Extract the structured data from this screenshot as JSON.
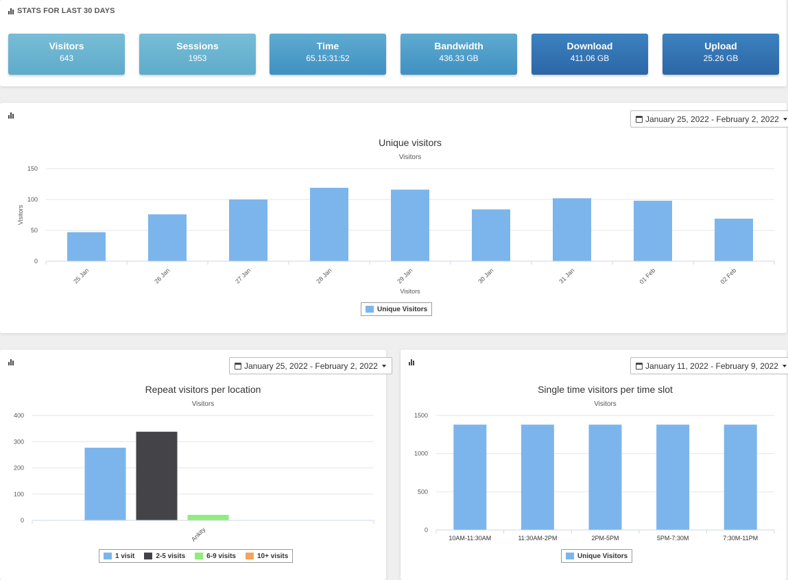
{
  "stats": {
    "title": "STATS FOR LAST 30 DAYS",
    "cards": [
      {
        "label": "Visitors",
        "value": "643"
      },
      {
        "label": "Sessions",
        "value": "1953"
      },
      {
        "label": "Time",
        "value": "65.15:31:52"
      },
      {
        "label": "Bandwidth",
        "value": "436.33 GB"
      },
      {
        "label": "Download",
        "value": "411.06 GB"
      },
      {
        "label": "Upload",
        "value": "25.26 GB"
      }
    ]
  },
  "unique": {
    "date_range": "January 25, 2022 - February 2, 2022",
    "legend": "Unique Visitors"
  },
  "repeat": {
    "date_range": "January 25, 2022 - February 2, 2022",
    "legend": [
      "1 visit",
      "2-5 visits",
      "6-9 visits",
      "10+ visits"
    ]
  },
  "slot": {
    "date_range": "January 11, 2022 - February 9, 2022",
    "legend": "Unique Visitors"
  },
  "colors": {
    "blue": "#7cb5ec",
    "dark": "#434348",
    "green": "#90ed7d",
    "orange": "#f7a35c"
  },
  "chart_data": [
    {
      "type": "bar",
      "title": "Unique visitors",
      "subtitle": "Visitors",
      "xlabel": "Visitors",
      "ylabel": "Visitors",
      "categories": [
        "25 Jan",
        "26 Jan",
        "27 Jan",
        "28 Jan",
        "29 Jan",
        "30 Jan",
        "31 Jan",
        "01 Feb",
        "02 Feb"
      ],
      "series": [
        {
          "name": "Unique Visitors",
          "values": [
            47,
            76,
            100,
            119,
            116,
            84,
            102,
            98,
            69
          ]
        }
      ],
      "yticks": [
        0,
        50,
        100,
        150
      ],
      "ylim": [
        0,
        150
      ],
      "grid": true,
      "legend": "bottom"
    },
    {
      "type": "bar",
      "title": "Repeat visitors per location",
      "subtitle": "Visitors",
      "xlabel": "",
      "ylabel": "",
      "categories": [
        "Ankity"
      ],
      "series": [
        {
          "name": "1 visit",
          "values": [
            277
          ]
        },
        {
          "name": "2-5 visits",
          "values": [
            338
          ]
        },
        {
          "name": "6-9 visits",
          "values": [
            21
          ]
        },
        {
          "name": "10+ visits",
          "values": [
            0
          ]
        }
      ],
      "yticks": [
        0,
        100,
        200,
        300,
        400
      ],
      "ylim": [
        0,
        400
      ],
      "grid": true,
      "legend": "bottom"
    },
    {
      "type": "bar",
      "title": "Single time visitors per time slot",
      "subtitle": "Visitors",
      "xlabel": "",
      "ylabel": "",
      "categories": [
        "10AM-11:30AM",
        "11:30AM-2PM",
        "2PM-5PM",
        "5PM-7:30M",
        "7:30M-11PM"
      ],
      "series": [
        {
          "name": "Unique Visitors",
          "values": [
            1380,
            1380,
            1380,
            1380,
            1380
          ]
        }
      ],
      "yticks": [
        0,
        500,
        1000,
        1500
      ],
      "ylim": [
        0,
        1500
      ],
      "grid": true,
      "legend": "bottom"
    }
  ]
}
